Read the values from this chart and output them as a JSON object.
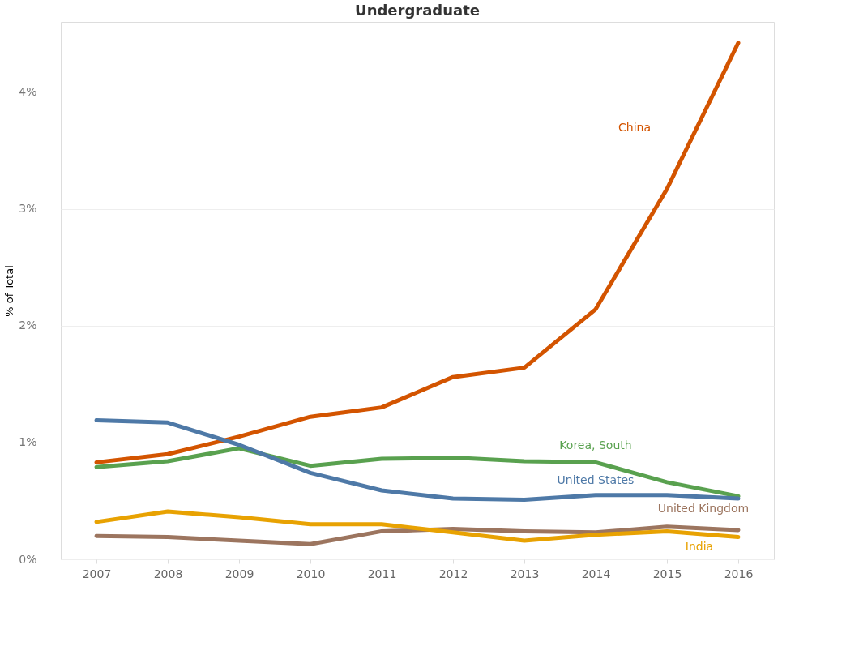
{
  "chart_data": {
    "type": "line",
    "title": "Undergraduate",
    "ylabel": "% of Total",
    "categories": [
      "2007",
      "2008",
      "2009",
      "2010",
      "2011",
      "2012",
      "2013",
      "2014",
      "2015",
      "2016"
    ],
    "series": [
      {
        "name": "China",
        "color": "#d35400",
        "values": [
          0.83,
          0.9,
          1.05,
          1.22,
          1.3,
          1.56,
          1.64,
          2.14,
          3.17,
          4.42
        ]
      },
      {
        "name": "Korea, South",
        "color": "#59a14f",
        "values": [
          0.79,
          0.84,
          0.95,
          0.8,
          0.86,
          0.87,
          0.84,
          0.83,
          0.66,
          0.54
        ]
      },
      {
        "name": "United States",
        "color": "#4e79a7",
        "values": [
          1.19,
          1.17,
          0.98,
          0.74,
          0.59,
          0.52,
          0.51,
          0.55,
          0.55,
          0.52
        ]
      },
      {
        "name": "United Kingdom",
        "color": "#9c755f",
        "values": [
          0.2,
          0.19,
          0.16,
          0.13,
          0.24,
          0.26,
          0.24,
          0.23,
          0.28,
          0.25
        ]
      },
      {
        "name": "India",
        "color": "#e8a202",
        "values": [
          0.32,
          0.41,
          0.36,
          0.3,
          0.3,
          0.23,
          0.16,
          0.21,
          0.24,
          0.19
        ]
      }
    ],
    "ylim": [
      0,
      4.6
    ],
    "yticks": [
      {
        "value": 0,
        "label": "0%"
      },
      {
        "value": 1,
        "label": "1%"
      },
      {
        "value": 2,
        "label": "2%"
      },
      {
        "value": 3,
        "label": "3%"
      },
      {
        "value": 4,
        "label": "4%"
      }
    ],
    "grid": "y",
    "legend": false,
    "marker": "none",
    "line_style": "solid"
  }
}
